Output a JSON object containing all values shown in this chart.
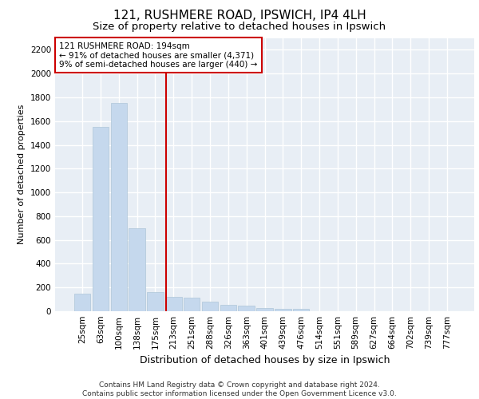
{
  "title1": "121, RUSHMERE ROAD, IPSWICH, IP4 4LH",
  "title2": "Size of property relative to detached houses in Ipswich",
  "xlabel": "Distribution of detached houses by size in Ipswich",
  "ylabel": "Number of detached properties",
  "categories": [
    "25sqm",
    "63sqm",
    "100sqm",
    "138sqm",
    "175sqm",
    "213sqm",
    "251sqm",
    "288sqm",
    "326sqm",
    "363sqm",
    "401sqm",
    "439sqm",
    "476sqm",
    "514sqm",
    "551sqm",
    "589sqm",
    "627sqm",
    "664sqm",
    "702sqm",
    "739sqm",
    "777sqm"
  ],
  "values": [
    150,
    1550,
    1750,
    700,
    160,
    120,
    115,
    80,
    55,
    45,
    30,
    20,
    20,
    0,
    0,
    0,
    0,
    0,
    0,
    0,
    0
  ],
  "bar_color": "#c5d8ed",
  "bar_edge_color": "#aec6d8",
  "vline_color": "#cc0000",
  "annotation_text": "121 RUSHMERE ROAD: 194sqm\n← 91% of detached houses are smaller (4,371)\n9% of semi-detached houses are larger (440) →",
  "annotation_box_color": "#ffffff",
  "annotation_box_edge": "#cc0000",
  "ylim": [
    0,
    2300
  ],
  "yticks": [
    0,
    200,
    400,
    600,
    800,
    1000,
    1200,
    1400,
    1600,
    1800,
    2000,
    2200
  ],
  "bg_color": "#e8eef5",
  "footer": "Contains HM Land Registry data © Crown copyright and database right 2024.\nContains public sector information licensed under the Open Government Licence v3.0.",
  "title1_fontsize": 11,
  "title2_fontsize": 9.5,
  "xlabel_fontsize": 9,
  "ylabel_fontsize": 8,
  "tick_fontsize": 7.5,
  "annotation_fontsize": 7.5,
  "footer_fontsize": 6.5,
  "vline_x_index": 4.6
}
